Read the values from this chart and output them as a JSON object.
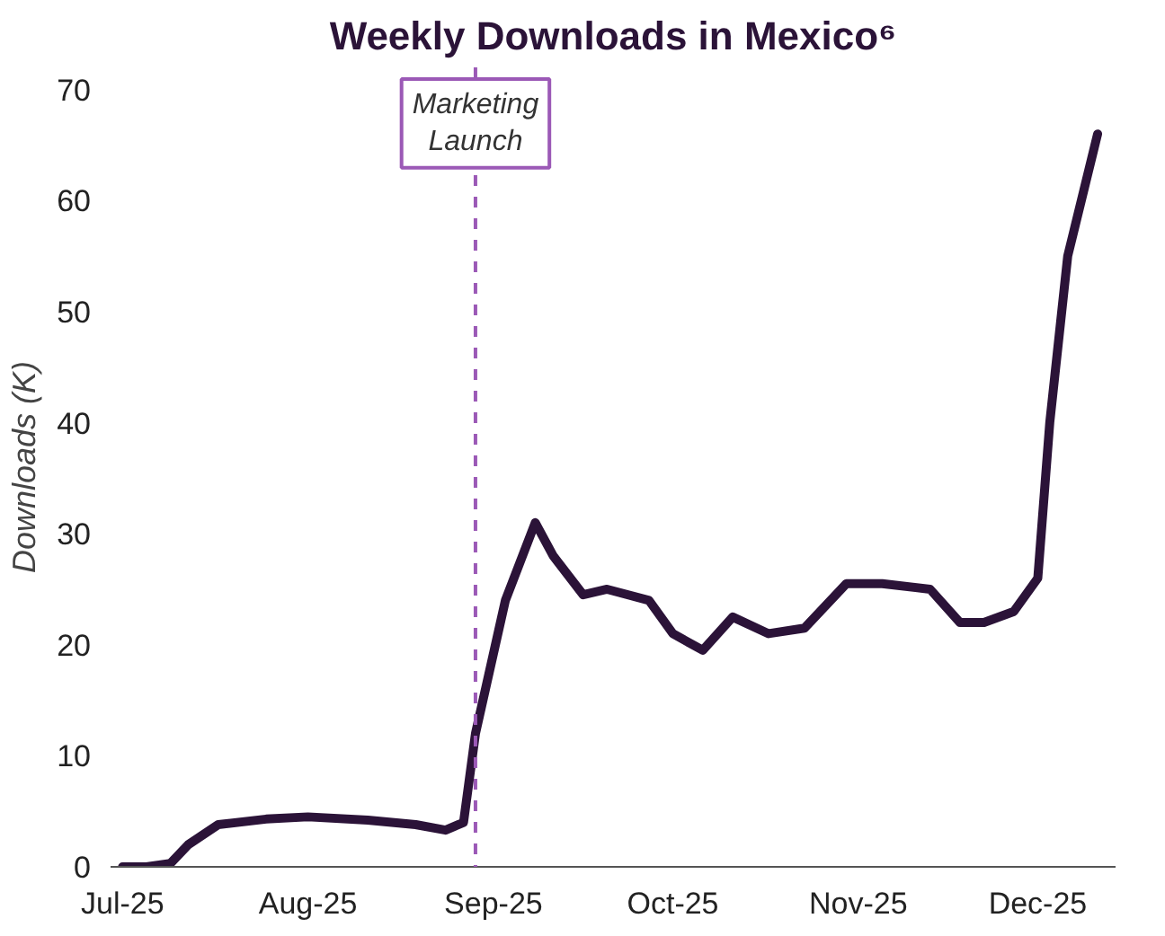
{
  "chart_data": {
    "type": "line",
    "title": "Weekly Downloads in Mexico⁶",
    "ylabel": "Downloads (K)",
    "x": [
      "2025-07-01",
      "2025-07-05",
      "2025-07-09",
      "2025-07-12",
      "2025-07-17",
      "2025-07-25",
      "2025-08-01",
      "2025-08-11",
      "2025-08-19",
      "2025-08-24",
      "2025-08-27",
      "2025-08-29",
      "2025-09-03",
      "2025-09-08",
      "2025-09-11",
      "2025-09-16",
      "2025-09-20",
      "2025-09-27",
      "2025-10-01",
      "2025-10-06",
      "2025-10-11",
      "2025-10-17",
      "2025-10-23",
      "2025-10-30",
      "2025-11-05",
      "2025-11-13",
      "2025-11-18",
      "2025-11-22",
      "2025-11-27",
      "2025-12-01",
      "2025-12-03",
      "2025-12-06",
      "2025-12-11"
    ],
    "series": [
      {
        "color": "#2b1338",
        "values": [
          0,
          0,
          0.3,
          2,
          3.8,
          4.3,
          4.5,
          4.2,
          3.8,
          3.3,
          4,
          12,
          24,
          31,
          28,
          24.5,
          25,
          24,
          21,
          19.5,
          22.5,
          21,
          21.5,
          25.5,
          25.5,
          25,
          22,
          22,
          23,
          26,
          40,
          55,
          66
        ]
      }
    ],
    "xlim": [
      "2025-06-29",
      "2025-12-14"
    ],
    "xticks": [
      {
        "value": "2025-07-01",
        "label": "Jul-25"
      },
      {
        "value": "2025-08-01",
        "label": "Aug-25"
      },
      {
        "value": "2025-09-01",
        "label": "Sep-25"
      },
      {
        "value": "2025-10-01",
        "label": "Oct-25"
      },
      {
        "value": "2025-11-01",
        "label": "Nov-25"
      },
      {
        "value": "2025-12-01",
        "label": "Dec-25"
      }
    ],
    "ylim": [
      0,
      72
    ],
    "yticks": [
      0,
      10,
      20,
      30,
      40,
      50,
      60,
      70
    ],
    "grid": false,
    "line_style": "solid",
    "marker": "none",
    "ref_lines": [
      {
        "axis": "x",
        "value": "2025-08-29",
        "label": "Marketing\nLaunch",
        "color": "#9b59b6",
        "line_style": "dashed"
      }
    ]
  }
}
